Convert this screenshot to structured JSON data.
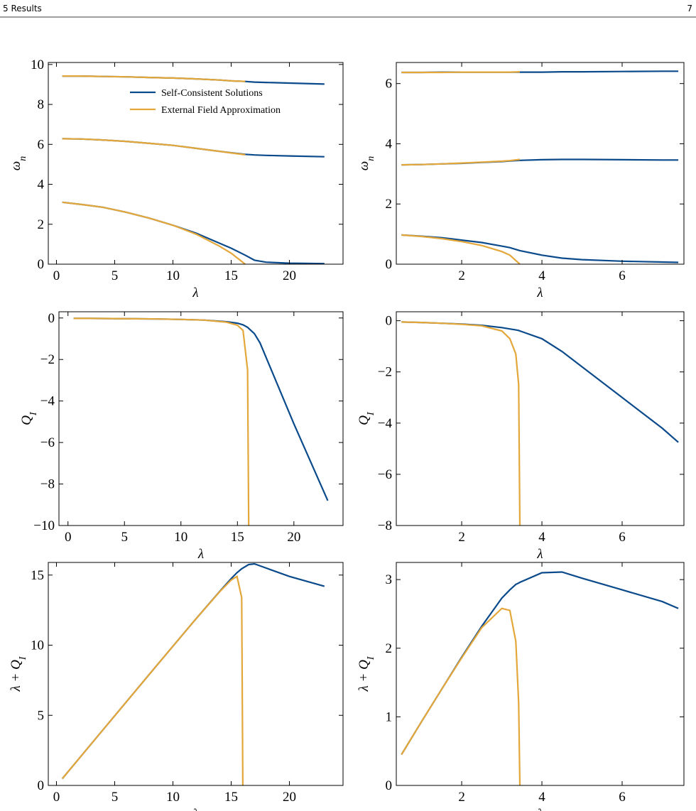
{
  "header": {
    "section": "5 Results",
    "page": "7"
  },
  "chart_data": [
    {
      "type": "line",
      "xlabel": "λ",
      "ylabel": [
        "ω",
        "n"
      ],
      "legend": "upper right",
      "x": [
        0.5,
        2,
        4,
        6,
        8,
        10,
        12,
        14,
        15,
        16.2,
        17,
        18,
        20,
        23
      ],
      "xlim": [
        -0.7,
        24.6
      ],
      "ylim": [
        0,
        10.1
      ],
      "xticks": [
        0,
        5,
        10,
        15,
        20
      ],
      "yticks": [
        0,
        2,
        4,
        6,
        8,
        10
      ],
      "series": [
        {
          "name": "Self-Consistent Solutions",
          "color": "#0b4a8b",
          "values": [
            3.1,
            3.0,
            2.85,
            2.6,
            2.3,
            1.95,
            1.55,
            1.05,
            0.8,
            0.45,
            0.2,
            0.1,
            0.05,
            0.03
          ]
        },
        {
          "name": "External Field Approximation",
          "color": "#e3a73a",
          "values": [
            3.1,
            3.0,
            2.85,
            2.6,
            2.3,
            1.95,
            1.5,
            0.9,
            0.55,
            0,
            null,
            null,
            null,
            null
          ]
        },
        {
          "color": "#0b4a8b",
          "values": [
            6.28,
            6.27,
            6.22,
            6.15,
            6.05,
            5.95,
            5.8,
            5.65,
            5.58,
            5.5,
            5.47,
            5.45,
            5.42,
            5.38
          ]
        },
        {
          "color": "#e3a73a",
          "values": [
            6.28,
            6.27,
            6.22,
            6.15,
            6.05,
            5.95,
            5.8,
            5.65,
            5.57,
            5.48,
            null,
            null,
            null,
            null
          ]
        },
        {
          "color": "#0b4a8b",
          "values": [
            9.42,
            9.42,
            9.4,
            9.38,
            9.35,
            9.32,
            9.28,
            9.22,
            9.18,
            9.15,
            9.12,
            9.1,
            9.07,
            9.02
          ]
        },
        {
          "color": "#e3a73a",
          "values": [
            9.42,
            9.42,
            9.4,
            9.38,
            9.35,
            9.32,
            9.28,
            9.22,
            9.18,
            9.15,
            null,
            null,
            null,
            null
          ]
        }
      ]
    },
    {
      "type": "line",
      "xlabel": "λ",
      "ylabel": [
        "ω",
        "n"
      ],
      "x": [
        0.5,
        1,
        1.5,
        2,
        2.5,
        3,
        3.2,
        3.45,
        4,
        4.5,
        5,
        6,
        7,
        7.4
      ],
      "xlim": [
        0.37,
        7.54
      ],
      "ylim": [
        0,
        6.7
      ],
      "xticks": [
        2,
        4,
        6
      ],
      "yticks": [
        0,
        2,
        4,
        6
      ],
      "series": [
        {
          "color": "#0b4a8b",
          "values": [
            0.97,
            0.93,
            0.88,
            0.8,
            0.72,
            0.6,
            0.55,
            0.45,
            0.3,
            0.2,
            0.15,
            0.1,
            0.07,
            0.06
          ]
        },
        {
          "color": "#e3a73a",
          "values": [
            0.97,
            0.92,
            0.85,
            0.75,
            0.62,
            0.42,
            0.3,
            0,
            null,
            null,
            null,
            null,
            null,
            null
          ]
        },
        {
          "color": "#0b4a8b",
          "values": [
            3.3,
            3.31,
            3.33,
            3.35,
            3.38,
            3.41,
            3.43,
            3.45,
            3.47,
            3.48,
            3.48,
            3.47,
            3.46,
            3.46
          ]
        },
        {
          "color": "#e3a73a",
          "values": [
            3.3,
            3.31,
            3.33,
            3.36,
            3.39,
            3.42,
            3.44,
            3.48,
            null,
            null,
            null,
            null,
            null,
            null
          ]
        },
        {
          "color": "#0b4a8b",
          "values": [
            6.37,
            6.37,
            6.38,
            6.38,
            6.38,
            6.38,
            6.38,
            6.38,
            6.38,
            6.39,
            6.39,
            6.4,
            6.41,
            6.41
          ]
        },
        {
          "color": "#e3a73a",
          "values": [
            6.37,
            6.37,
            6.37,
            6.38,
            6.38,
            6.38,
            6.38,
            6.39,
            null,
            null,
            null,
            null,
            null,
            null
          ]
        }
      ]
    },
    {
      "type": "line",
      "xlabel": "λ",
      "ylabel": [
        "Q",
        "I"
      ],
      "x": [
        0.5,
        2,
        4,
        6,
        8,
        10,
        12,
        14,
        15,
        15.5,
        15.9,
        16,
        16.5,
        17,
        18,
        20,
        23
      ],
      "xlim": [
        -0.8,
        24.35
      ],
      "ylim": [
        -10,
        0.3
      ],
      "xticks": [
        0,
        5,
        10,
        15,
        20
      ],
      "yticks": [
        0,
        {
          "value": -2,
          "label": "−2"
        },
        {
          "value": -4,
          "label": "−4"
        },
        {
          "value": -6,
          "label": "−6"
        },
        {
          "value": -8,
          "label": "−8"
        },
        {
          "value": -10,
          "label": "−10"
        }
      ],
      "series": [
        {
          "color": "#0b4a8b",
          "values": [
            -0.02,
            -0.02,
            -0.03,
            -0.04,
            -0.05,
            -0.07,
            -0.1,
            -0.18,
            -0.25,
            -0.33,
            -0.45,
            -0.5,
            -0.75,
            -1.2,
            -2.5,
            -5.1,
            -8.8
          ]
        },
        {
          "color": "#e3a73a",
          "values": [
            -0.02,
            -0.02,
            -0.03,
            -0.04,
            -0.05,
            -0.07,
            -0.1,
            -0.2,
            -0.35,
            -0.6,
            -2.5,
            -10,
            null,
            null,
            null,
            null,
            null
          ]
        }
      ]
    },
    {
      "type": "line",
      "xlabel": "λ",
      "ylabel": [
        "Q",
        "I"
      ],
      "x": [
        0.5,
        1,
        1.5,
        2,
        2.5,
        3,
        3.2,
        3.35,
        3.42,
        3.45,
        4,
        4.5,
        5,
        6,
        7,
        7.4
      ],
      "xlim": [
        0.37,
        7.54
      ],
      "ylim": [
        -8,
        0.35
      ],
      "xticks": [
        2,
        4,
        6
      ],
      "yticks": [
        0,
        {
          "value": -2,
          "label": "−2"
        },
        {
          "value": -4,
          "label": "−4"
        },
        {
          "value": -6,
          "label": "−6"
        },
        {
          "value": -8,
          "label": "−8"
        }
      ],
      "series": [
        {
          "color": "#0b4a8b",
          "values": [
            -0.05,
            -0.07,
            -0.1,
            -0.13,
            -0.18,
            -0.27,
            -0.32,
            -0.36,
            -0.38,
            -0.4,
            -0.7,
            -1.2,
            -1.8,
            -3.0,
            -4.2,
            -4.75
          ]
        },
        {
          "color": "#e3a73a",
          "values": [
            -0.05,
            -0.07,
            -0.1,
            -0.14,
            -0.2,
            -0.4,
            -0.7,
            -1.3,
            -2.5,
            -8,
            null,
            null,
            null,
            null,
            null,
            null
          ]
        }
      ]
    },
    {
      "type": "line",
      "xlabel": "λ",
      "ylabel": [
        "λ + Q",
        "I"
      ],
      "x": [
        0.5,
        2,
        4,
        6,
        8,
        10,
        12,
        14,
        15,
        15.5,
        15.9,
        16,
        16.5,
        17,
        18,
        20,
        23
      ],
      "xlim": [
        -0.7,
        24.6
      ],
      "ylim": [
        0,
        15.9
      ],
      "xticks": [
        0,
        5,
        10,
        15,
        20
      ],
      "yticks": [
        0,
        5,
        10,
        15
      ],
      "series": [
        {
          "color": "#0b4a8b",
          "values": [
            0.48,
            1.98,
            3.97,
            5.96,
            7.95,
            9.93,
            11.9,
            13.82,
            14.75,
            15.17,
            15.45,
            15.5,
            15.75,
            15.8,
            15.5,
            14.9,
            14.2
          ]
        },
        {
          "color": "#e3a73a",
          "values": [
            0.48,
            1.98,
            3.97,
            5.96,
            7.95,
            9.93,
            11.9,
            13.8,
            14.65,
            14.9,
            13.4,
            0,
            null,
            null,
            null,
            null,
            null
          ]
        }
      ]
    },
    {
      "type": "line",
      "xlabel": "λ",
      "ylabel": [
        "λ + Q",
        "I"
      ],
      "x": [
        0.5,
        1,
        1.5,
        2,
        2.5,
        3,
        3.2,
        3.35,
        3.42,
        3.45,
        4,
        4.5,
        5,
        6,
        7,
        7.4
      ],
      "xlim": [
        0.37,
        7.54
      ],
      "ylim": [
        0,
        3.25
      ],
      "xticks": [
        2,
        4,
        6
      ],
      "yticks": [
        0,
        1,
        2,
        3
      ],
      "series": [
        {
          "color": "#0b4a8b",
          "values": [
            0.45,
            0.93,
            1.4,
            1.87,
            2.32,
            2.73,
            2.85,
            2.93,
            2.95,
            2.96,
            3.1,
            3.11,
            3.02,
            2.85,
            2.68,
            2.58
          ]
        },
        {
          "color": "#e3a73a",
          "values": [
            0.45,
            0.93,
            1.4,
            1.86,
            2.3,
            2.58,
            2.55,
            2.1,
            1.2,
            0,
            null,
            null,
            null,
            null,
            null,
            null
          ]
        }
      ]
    }
  ]
}
